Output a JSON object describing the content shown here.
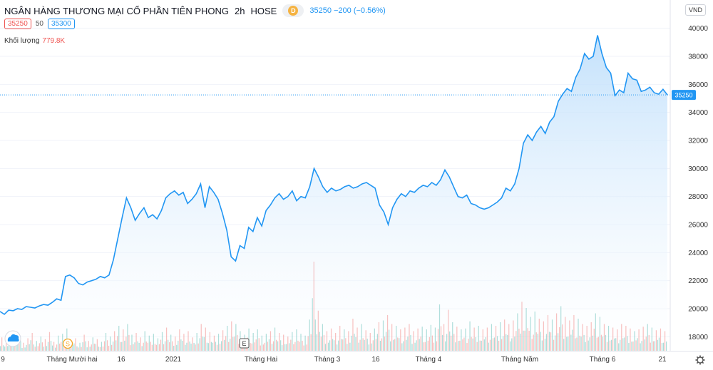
{
  "header": {
    "title": "NGÂN HÀNG THƯƠNG MẠI CỔ PHẦN TIÊN PHONG",
    "interval": "2h",
    "exchange": "HOSE",
    "badge": "D",
    "last_price": "35250",
    "change": "−200 (−0.56%)"
  },
  "order": {
    "sell": "35250",
    "spread": "50",
    "buy": "35300"
  },
  "volume": {
    "label": "Khối lượng",
    "value": "779.8K"
  },
  "currency": "VND",
  "icons": {
    "timeline_marker_s": "S",
    "timeline_marker_e": "E"
  },
  "chart_data": {
    "type": "area",
    "y_axis": {
      "ylim": [
        17000,
        41000
      ],
      "ticks": [
        "40000",
        "38000",
        "36000",
        "34000",
        "32000",
        "30000",
        "28000",
        "26000",
        "24000",
        "22000",
        "20000",
        "18000"
      ],
      "position": "right"
    },
    "x_axis": {
      "ticks": [
        "9",
        "Tháng Mười hai",
        "16",
        "2021",
        "Tháng Hai",
        "Tháng 3",
        "16",
        "Tháng 4",
        "Tháng Năm",
        "Tháng 6",
        "21"
      ]
    },
    "price_series": [
      19800,
      19600,
      19900,
      19850,
      20000,
      19950,
      20150,
      20100,
      20050,
      20200,
      20300,
      20250,
      20450,
      20700,
      20600,
      22300,
      22400,
      22200,
      21800,
      21700,
      21900,
      22000,
      22100,
      22300,
      22200,
      22400,
      23500,
      25000,
      26500,
      27900,
      27200,
      26300,
      26800,
      27200,
      26500,
      26700,
      26400,
      27000,
      27900,
      28200,
      28400,
      28100,
      28300,
      27500,
      27800,
      28200,
      28900,
      27200,
      28700,
      28300,
      27800,
      26800,
      25600,
      23700,
      23400,
      24500,
      24300,
      25800,
      25500,
      26500,
      25900,
      27000,
      27400,
      27900,
      28200,
      27800,
      28000,
      28400,
      27700,
      28000,
      27900,
      28700,
      30000,
      29400,
      28700,
      28300,
      28600,
      28400,
      28500,
      28700,
      28800,
      28600,
      28700,
      28900,
      29000,
      28800,
      28600,
      27400,
      26900,
      26000,
      27200,
      27800,
      28200,
      28000,
      28400,
      28300,
      28600,
      28800,
      28700,
      29000,
      28800,
      29200,
      29900,
      29400,
      28700,
      28000,
      27900,
      28100,
      27500,
      27400,
      27200,
      27100,
      27200,
      27400,
      27600,
      27900,
      28600,
      28400,
      28900,
      30000,
      31800,
      32400,
      32000,
      32600,
      33000,
      32500,
      33300,
      33700,
      34800,
      35300,
      35700,
      35500,
      36500,
      37100,
      38200,
      37800,
      38000,
      39500,
      38200,
      37200,
      36800,
      35200,
      35600,
      35400,
      36800,
      36400,
      36300,
      35500,
      35600,
      35800,
      35400,
      35300,
      35650,
      35250
    ],
    "last_value": 35250,
    "volume_series": [
      0.15,
      0.1,
      0.22,
      0.12,
      0.18,
      0.09,
      0.14,
      0.2,
      0.11,
      0.16,
      0.13,
      0.21,
      0.1,
      0.17,
      0.19,
      0.25,
      0.12,
      0.14,
      0.09,
      0.18,
      0.11,
      0.15,
      0.13,
      0.1,
      0.2,
      0.16,
      0.22,
      0.28,
      0.24,
      0.3,
      0.18,
      0.2,
      0.15,
      0.22,
      0.17,
      0.19,
      0.14,
      0.21,
      0.26,
      0.18,
      0.16,
      0.24,
      0.19,
      0.22,
      0.15,
      0.2,
      0.3,
      0.26,
      0.21,
      0.17,
      0.19,
      0.23,
      0.28,
      0.33,
      0.3,
      0.22,
      0.18,
      0.25,
      0.2,
      0.24,
      0.17,
      0.19,
      0.22,
      0.26,
      0.2,
      0.18,
      0.16,
      0.21,
      0.24,
      0.19,
      0.17,
      0.35,
      1.0,
      0.45,
      0.3,
      0.22,
      0.25,
      0.2,
      0.28,
      0.24,
      0.22,
      0.36,
      0.26,
      0.3,
      0.23,
      0.2,
      0.25,
      0.32,
      0.34,
      0.4,
      0.3,
      0.28,
      0.24,
      0.26,
      0.3,
      0.22,
      0.25,
      0.27,
      0.24,
      0.29,
      0.26,
      0.52,
      0.3,
      0.46,
      0.32,
      0.27,
      0.24,
      0.25,
      0.33,
      0.26,
      0.28,
      0.24,
      0.26,
      0.3,
      0.28,
      0.32,
      0.35,
      0.3,
      0.34,
      0.42,
      0.55,
      0.48,
      0.38,
      0.44,
      0.36,
      0.33,
      0.4,
      0.35,
      0.42,
      0.5,
      0.38,
      0.34,
      0.4,
      0.36,
      0.3,
      0.28,
      0.32,
      0.42,
      0.38,
      0.3,
      0.28,
      0.26,
      0.24,
      0.3,
      0.28,
      0.25,
      0.22,
      0.24,
      0.27,
      0.3,
      0.26,
      0.23,
      0.25,
      0.22
    ],
    "current_line": 35250
  },
  "colors": {
    "line": "#2196f3",
    "area_top": "#b9dcfb",
    "area_bottom": "#ffffff",
    "vol_up": "#26a69a",
    "vol_down": "#ef5350",
    "grid": "#f0f3fa",
    "last_label_bg": "#2196f3"
  }
}
